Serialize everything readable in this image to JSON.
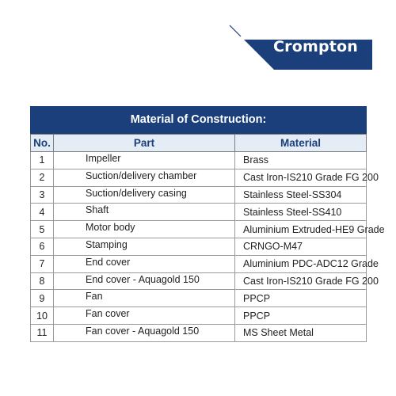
{
  "logo": {
    "text": "Crompton",
    "color": "#1b3f7a"
  },
  "table": {
    "title": "Material of Construction:",
    "header_color": "#1b3f7a",
    "subheader_bg": "#e4ecf6",
    "columns": [
      "No.",
      "Part",
      "Material"
    ],
    "rows": [
      {
        "no": "1",
        "part": "Impeller",
        "material": "Brass"
      },
      {
        "no": "2",
        "part": "Suction/delivery chamber",
        "material": "Cast Iron-IS210 Grade FG 200"
      },
      {
        "no": "3",
        "part": "Suction/delivery casing",
        "material": "Stainless Steel-SS304"
      },
      {
        "no": "4",
        "part": "Shaft",
        "material": "Stainless Steel-SS410"
      },
      {
        "no": "5",
        "part": "Motor body",
        "material": "Aluminium Extruded-HE9 Grade"
      },
      {
        "no": "6",
        "part": "Stamping",
        "material": "CRNGO-M47"
      },
      {
        "no": "7",
        "part": "End cover",
        "material": "Aluminium PDC-ADC12 Grade"
      },
      {
        "no": "8",
        "part": "End cover - Aquagold 150",
        "material": "Cast Iron-IS210 Grade FG 200"
      },
      {
        "no": "9",
        "part": "Fan",
        "material": "PPCP"
      },
      {
        "no": "10",
        "part": "Fan cover",
        "material": "PPCP"
      },
      {
        "no": "11",
        "part": "Fan cover - Aquagold 150",
        "material": "MS Sheet Metal"
      }
    ]
  }
}
